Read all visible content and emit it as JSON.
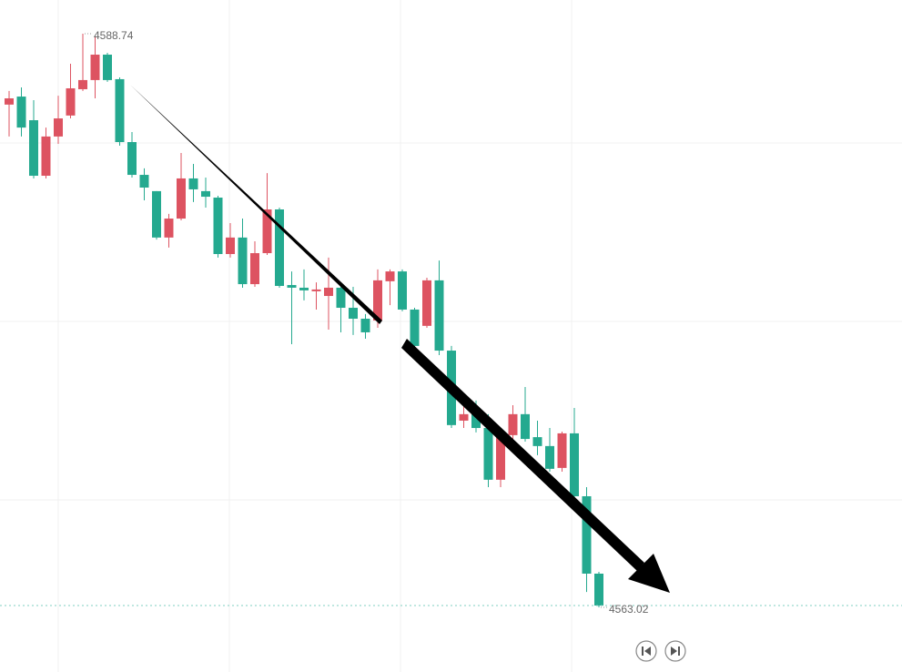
{
  "chart_data": {
    "type": "candlestick",
    "open": [
      4585.56,
      4585.92,
      4584.86,
      4582.37,
      4584.13,
      4585.07,
      4586.25,
      4586.66,
      4587.8,
      4586.7,
      4583.88,
      4582.41,
      4581.68,
      4579.6,
      4580.45,
      4582.25,
      4581.68,
      4581.39,
      4578.86,
      4579.6,
      4577.51,
      4578.9,
      4580.86,
      4577.47,
      4577.35,
      4577.19,
      4576.98,
      4577.35,
      4576.45,
      4575.96,
      4575.88,
      4577.64,
      4578.08,
      4576.37,
      4575.64,
      4577.68,
      4574.53,
      4571.39,
      4571.68,
      4571.06,
      4568.74,
      4570.74,
      4571.68,
      4570.65,
      4570.25,
      4569.27,
      4570.82,
      4568.0,
      4564.53
    ],
    "high": [
      4586.17,
      4586.33,
      4585.76,
      4584.53,
      4585.96,
      4587.39,
      4588.74,
      4588.62,
      4587.88,
      4586.78,
      4584.33,
      4582.7,
      4581.68,
      4580.66,
      4583.39,
      4582.9,
      4582.29,
      4581.47,
      4580.25,
      4580.45,
      4579.43,
      4582.49,
      4580.94,
      4578.08,
      4578.17,
      4577.59,
      4578.7,
      4577.51,
      4577.39,
      4576.17,
      4578.17,
      4578.17,
      4578.17,
      4576.45,
      4577.8,
      4578.57,
      4574.74,
      4572.29,
      4572.29,
      4571.68,
      4571.06,
      4572.08,
      4572.9,
      4571.39,
      4571.06,
      4570.9,
      4571.96,
      4568.41,
      4564.61
    ],
    "low": [
      4584.13,
      4584.13,
      4582.25,
      4582.25,
      4583.8,
      4584.94,
      4586.17,
      4585.84,
      4586.58,
      4583.72,
      4582.29,
      4581.27,
      4579.51,
      4579.15,
      4580.37,
      4581.19,
      4580.94,
      4578.7,
      4578.7,
      4577.35,
      4577.39,
      4578.82,
      4577.35,
      4574.82,
      4576.78,
      4576.37,
      4575.47,
      4575.35,
      4575.23,
      4575.06,
      4575.55,
      4576.57,
      4576.29,
      4574.53,
      4575.55,
      4574.33,
      4571.06,
      4571.06,
      4570.86,
      4568.41,
      4568.41,
      4570.57,
      4570.45,
      4569.84,
      4569.1,
      4569.1,
      4567.88,
      4563.71,
      4563.02
    ],
    "close": [
      4585.84,
      4584.53,
      4582.37,
      4584.13,
      4584.94,
      4586.29,
      4586.66,
      4587.8,
      4586.66,
      4583.88,
      4582.41,
      4581.84,
      4579.6,
      4580.45,
      4582.25,
      4581.76,
      4581.43,
      4578.86,
      4579.6,
      4577.51,
      4578.9,
      4580.86,
      4577.43,
      4577.35,
      4577.23,
      4577.27,
      4577.35,
      4576.45,
      4575.96,
      4575.35,
      4577.68,
      4578.08,
      4576.37,
      4574.74,
      4577.68,
      4574.53,
      4571.19,
      4571.68,
      4571.06,
      4568.74,
      4570.74,
      4571.68,
      4570.57,
      4570.25,
      4569.23,
      4570.82,
      4568.0,
      4564.53,
      4563.1
    ],
    "ylim": [
      4560.12,
      4590.25
    ],
    "up_color": "#dd5361",
    "down_color": "#24a98f"
  }
}
